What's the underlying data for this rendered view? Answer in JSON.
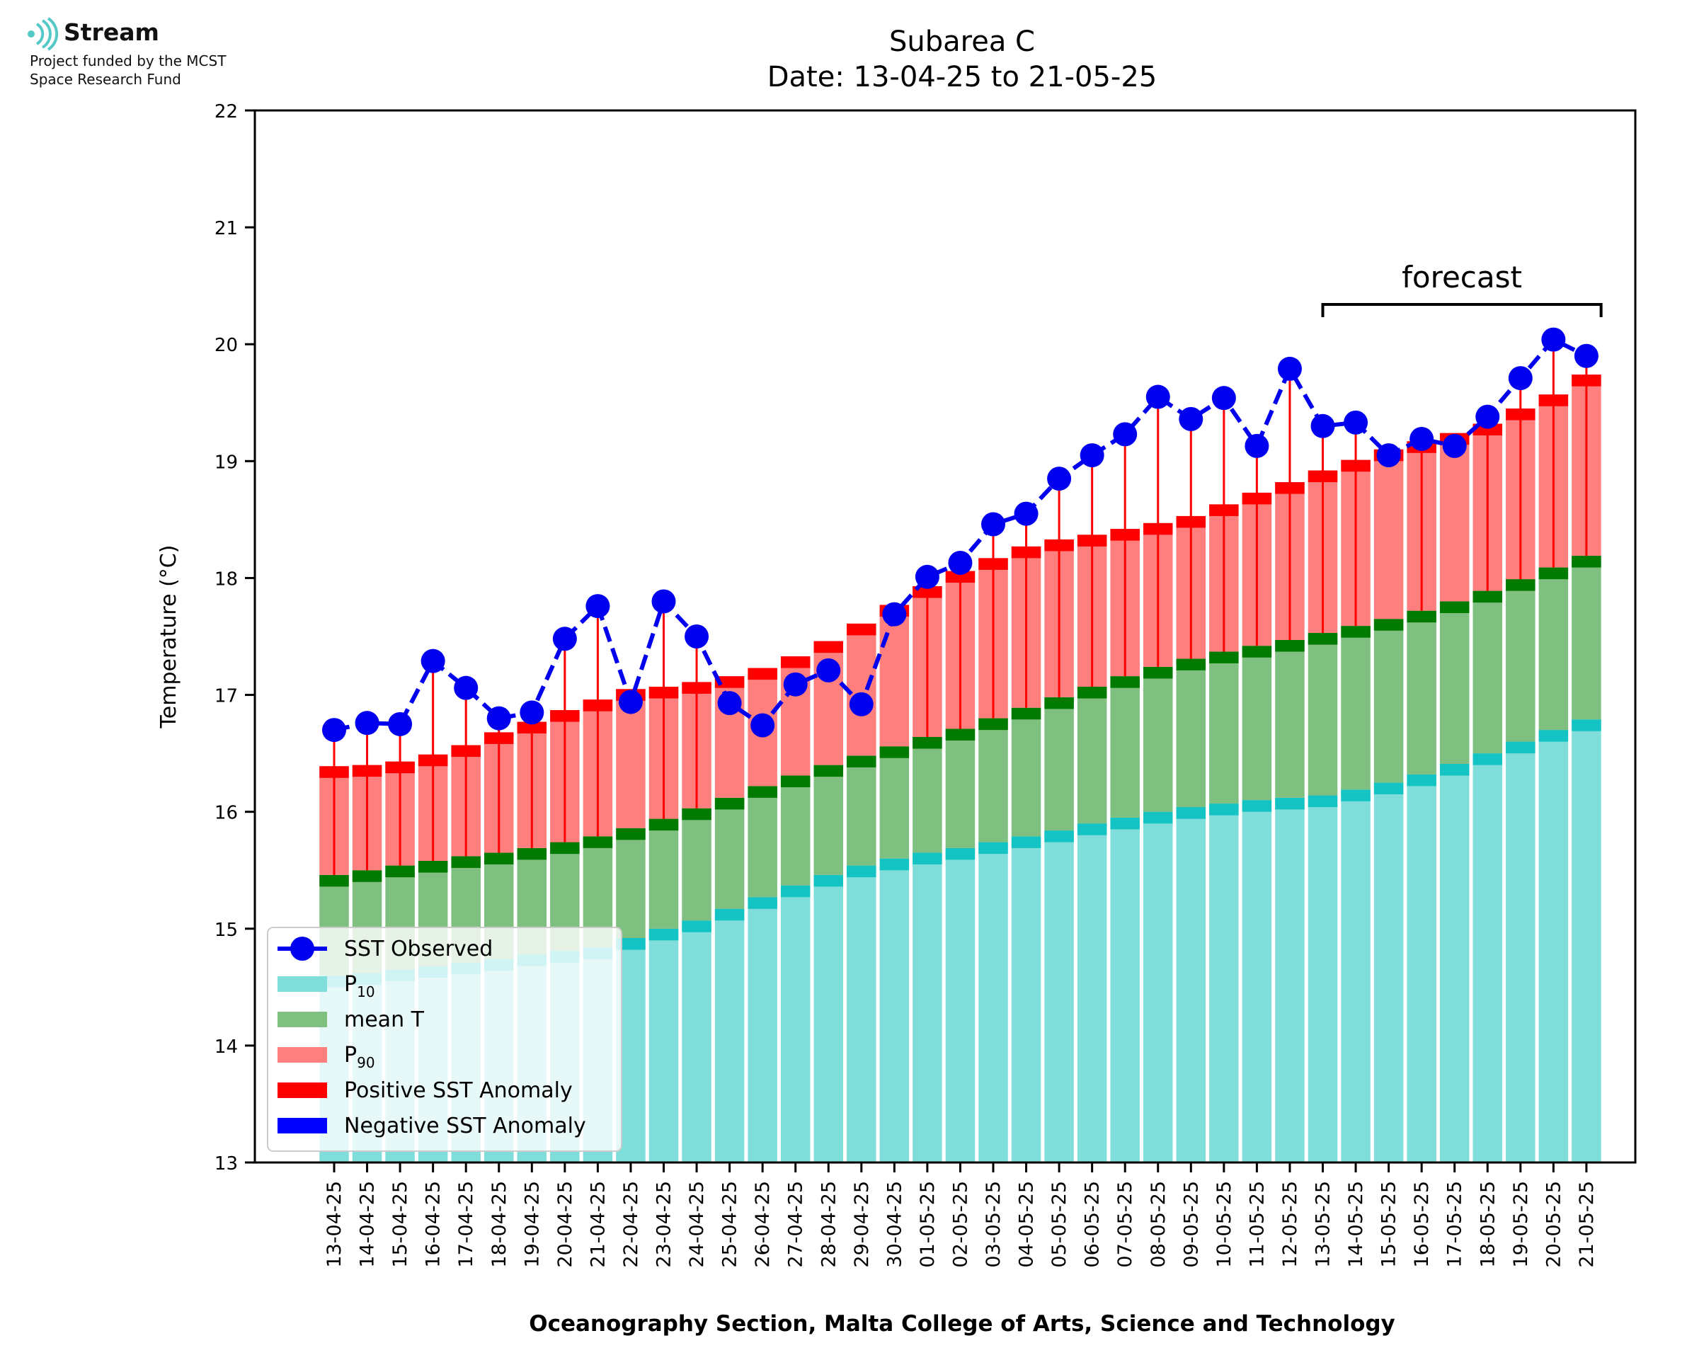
{
  "logo": {
    "name": "Stream",
    "lines": [
      "Project funded by the MCST",
      "Space Research Fund"
    ]
  },
  "chart_data": {
    "type": "bar",
    "title": "Subarea C",
    "subtitle": "Date: 13-04-25 to 21-05-25",
    "xlabel": "Oceanography Section, Malta College of Arts, Science and Technology",
    "ylabel": "Temperature (°C)",
    "ylim": [
      13,
      22
    ],
    "yticks": [
      13,
      14,
      15,
      16,
      17,
      18,
      19,
      20,
      21,
      22
    ],
    "grid": false,
    "legend_position": "lower-left",
    "annotation": {
      "text": "forecast",
      "from": "13-05-25",
      "to": "21-05-25"
    },
    "colors": {
      "observed": "#0000ee",
      "p10": "#80deda",
      "p10_cap": "#14c3c3",
      "mean": "#7fbf7f",
      "mean_cap": "#007a00",
      "p90": "#ff7f7f",
      "p90_cap": "#ff0000",
      "positive_anomaly": "#ff0000",
      "negative_anomaly": "#0000ff"
    },
    "legend": [
      {
        "key": "observed",
        "label": "SST Observed"
      },
      {
        "key": "p10",
        "label": "P",
        "sub": "10"
      },
      {
        "key": "mean",
        "label": "mean T"
      },
      {
        "key": "p90",
        "label": "P",
        "sub": "90"
      },
      {
        "key": "positive_anomaly",
        "label": "Positive SST Anomaly"
      },
      {
        "key": "negative_anomaly",
        "label": "Negative SST Anomaly"
      }
    ],
    "categories": [
      "13-04-25",
      "14-04-25",
      "15-04-25",
      "16-04-25",
      "17-04-25",
      "18-04-25",
      "19-04-25",
      "20-04-25",
      "21-04-25",
      "22-04-25",
      "23-04-25",
      "24-04-25",
      "25-04-25",
      "26-04-25",
      "27-04-25",
      "28-04-25",
      "29-04-25",
      "30-04-25",
      "01-05-25",
      "02-05-25",
      "03-05-25",
      "04-05-25",
      "05-05-25",
      "06-05-25",
      "07-05-25",
      "08-05-25",
      "09-05-25",
      "10-05-25",
      "11-05-25",
      "12-05-25",
      "13-05-25",
      "14-05-25",
      "15-05-25",
      "16-05-25",
      "17-05-25",
      "18-05-25",
      "19-05-25",
      "20-05-25",
      "21-05-25"
    ],
    "series": [
      {
        "name": "SST Observed",
        "values": [
          16.7,
          16.76,
          16.75,
          17.29,
          17.06,
          16.8,
          16.85,
          17.48,
          17.76,
          16.94,
          17.8,
          17.5,
          16.93,
          16.74,
          17.09,
          17.21,
          16.92,
          17.69,
          18.01,
          18.13,
          18.46,
          18.55,
          18.85,
          19.05,
          19.23,
          19.55,
          19.36,
          19.54,
          19.13,
          19.79,
          19.3,
          19.33,
          19.05,
          19.19,
          19.13,
          19.38,
          19.71,
          20.04,
          19.9
        ]
      },
      {
        "name": "P10",
        "values": [
          14.6,
          14.62,
          14.65,
          14.68,
          14.71,
          14.74,
          14.78,
          14.81,
          14.84,
          14.92,
          15.0,
          15.07,
          15.17,
          15.27,
          15.37,
          15.46,
          15.54,
          15.6,
          15.65,
          15.69,
          15.74,
          15.79,
          15.84,
          15.9,
          15.95,
          16.0,
          16.04,
          16.07,
          16.1,
          16.12,
          16.14,
          16.19,
          16.25,
          16.32,
          16.41,
          16.5,
          16.6,
          16.7,
          16.79
        ]
      },
      {
        "name": "mean T",
        "values": [
          15.46,
          15.5,
          15.54,
          15.58,
          15.62,
          15.65,
          15.69,
          15.74,
          15.79,
          15.86,
          15.94,
          16.03,
          16.12,
          16.22,
          16.31,
          16.4,
          16.48,
          16.56,
          16.64,
          16.71,
          16.8,
          16.89,
          16.98,
          17.07,
          17.16,
          17.24,
          17.31,
          17.37,
          17.42,
          17.47,
          17.53,
          17.59,
          17.65,
          17.72,
          17.8,
          17.89,
          17.99,
          18.09,
          18.19
        ]
      },
      {
        "name": "P90",
        "values": [
          16.39,
          16.4,
          16.43,
          16.49,
          16.57,
          16.68,
          16.77,
          16.87,
          16.96,
          17.05,
          17.07,
          17.11,
          17.16,
          17.23,
          17.33,
          17.46,
          17.61,
          17.77,
          17.93,
          18.06,
          18.17,
          18.27,
          18.33,
          18.37,
          18.42,
          18.47,
          18.53,
          18.63,
          18.73,
          18.82,
          18.92,
          19.01,
          19.1,
          19.17,
          19.24,
          19.32,
          19.45,
          19.57,
          19.74
        ]
      }
    ]
  }
}
